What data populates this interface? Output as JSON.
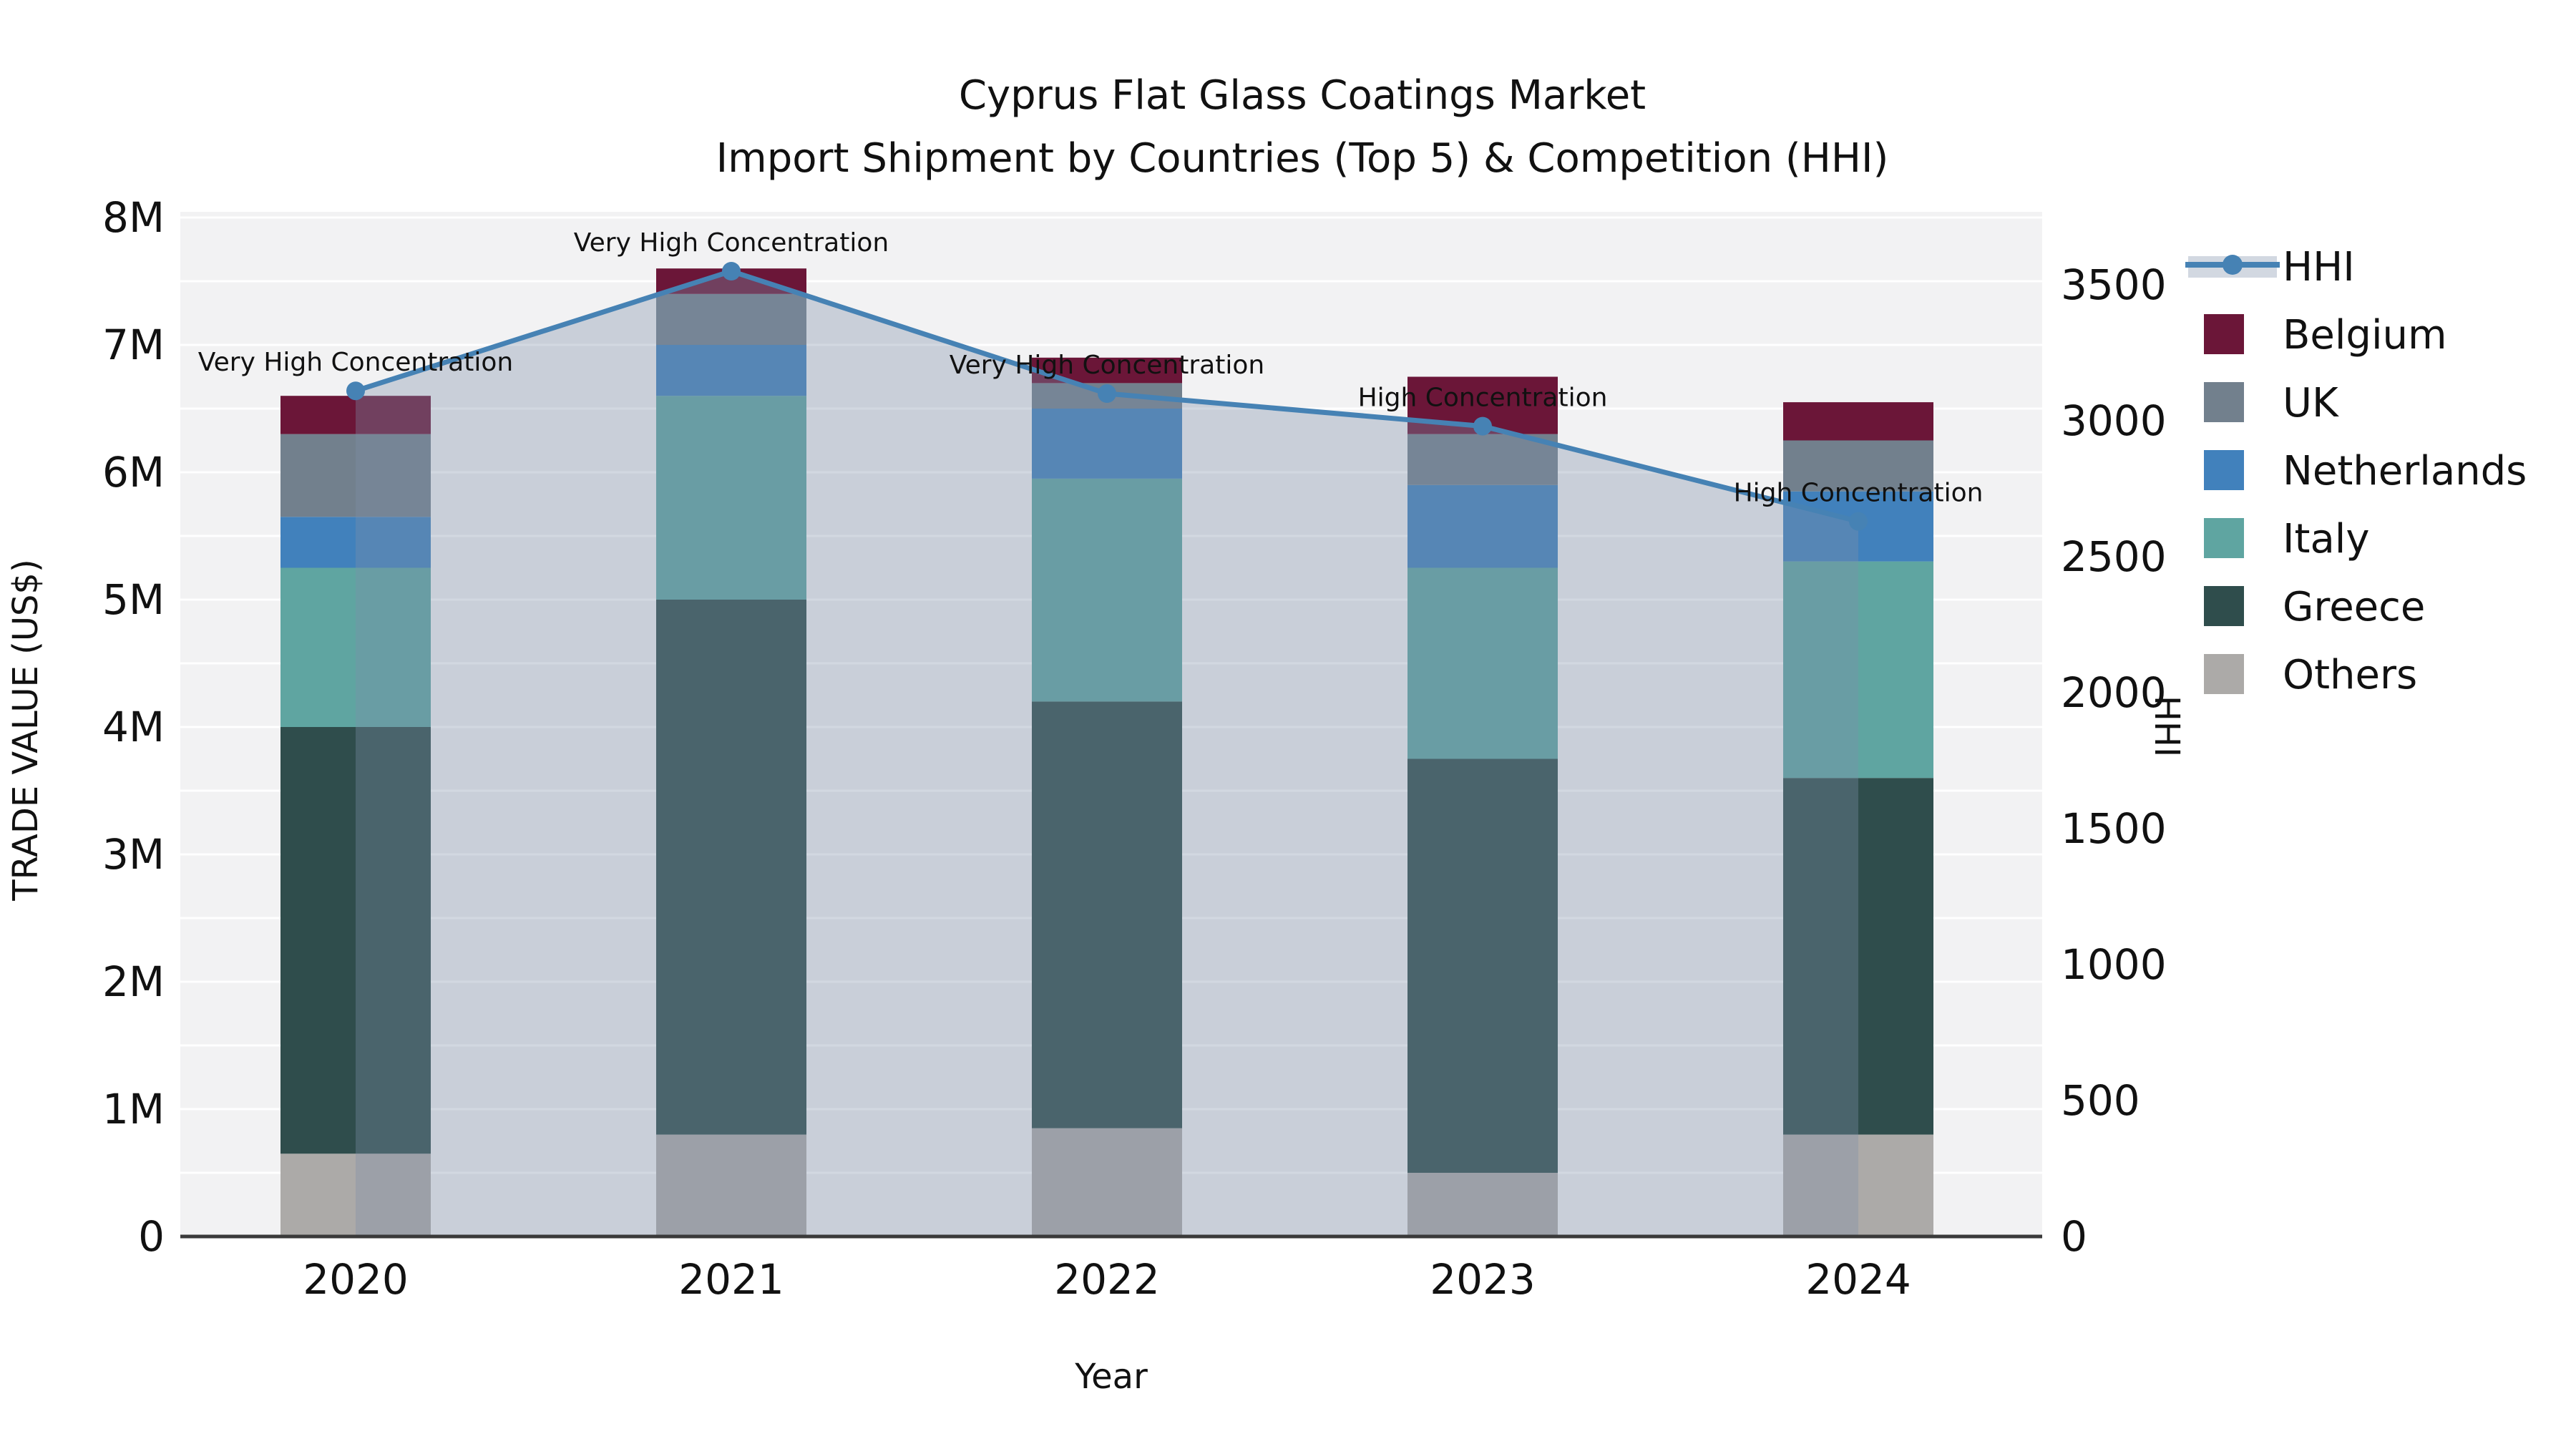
{
  "chart_data": {
    "type": "bar",
    "subtype": "stacked-bars-with-line",
    "title": "Cyprus Flat Glass Coatings Market",
    "subtitle": "Import Shipment by Countries (Top 5) & Competition (HHI)",
    "xlabel": "Year",
    "ylabel_left": "TRADE VALUE (US$)",
    "ylabel_right": "HHI",
    "categories": [
      "2020",
      "2021",
      "2022",
      "2023",
      "2024"
    ],
    "unit": "million USD",
    "series": [
      {
        "name": "Others",
        "color": "#ACAAA8",
        "values": [
          0.65,
          0.8,
          0.85,
          0.5,
          0.8
        ]
      },
      {
        "name": "Greece",
        "color": "#2F4D4C",
        "values": [
          3.35,
          4.2,
          3.35,
          3.25,
          2.8
        ]
      },
      {
        "name": "Italy",
        "color": "#5FA5A1",
        "values": [
          1.25,
          1.6,
          1.75,
          1.5,
          1.7
        ]
      },
      {
        "name": "Netherlands",
        "color": "#4181BC",
        "values": [
          0.4,
          0.4,
          0.55,
          0.65,
          0.55
        ]
      },
      {
        "name": "UK",
        "color": "#72808D",
        "values": [
          0.65,
          0.4,
          0.2,
          0.4,
          0.4
        ]
      },
      {
        "name": "Belgium",
        "color": "#6B1638",
        "values": [
          0.3,
          0.2,
          0.2,
          0.45,
          0.3
        ]
      }
    ],
    "bar_totals_musd": [
      6.6,
      7.6,
      6.9,
      6.75,
      6.55
    ],
    "hhi_line": {
      "name": "HHI",
      "color": "#4682B4",
      "fill": "rgba(127,144,169,0.35)",
      "values": [
        3110,
        3550,
        3100,
        2980,
        2630
      ],
      "annotations": [
        "Very High Concentration",
        "Very High Concentration",
        "Very High Concentration",
        "High Concentration",
        "High Concentration"
      ]
    },
    "left_axis": {
      "tick_labels": [
        "0",
        "1M",
        "2M",
        "3M",
        "4M",
        "5M",
        "6M",
        "7M",
        "8M"
      ],
      "min": 0,
      "max_musd": 8
    },
    "right_axis": {
      "tick_labels": [
        "0",
        "500",
        "1000",
        "1500",
        "2000",
        "2500",
        "3000",
        "3500"
      ],
      "min": 0,
      "max_shown": 3500
    },
    "legend_order": [
      "HHI",
      "Belgium",
      "UK",
      "Netherlands",
      "Italy",
      "Greece",
      "Others"
    ],
    "grid": "on",
    "legend_position": "right-outside"
  },
  "colors": {
    "figure_bg": "#FFFFFF",
    "plot_bg": "#F2F2F3",
    "gridline": "#FFFFFF",
    "axis_line": "#3A3A3A",
    "text": "#111111",
    "legend_hhi_band": "#D2D8E1"
  }
}
